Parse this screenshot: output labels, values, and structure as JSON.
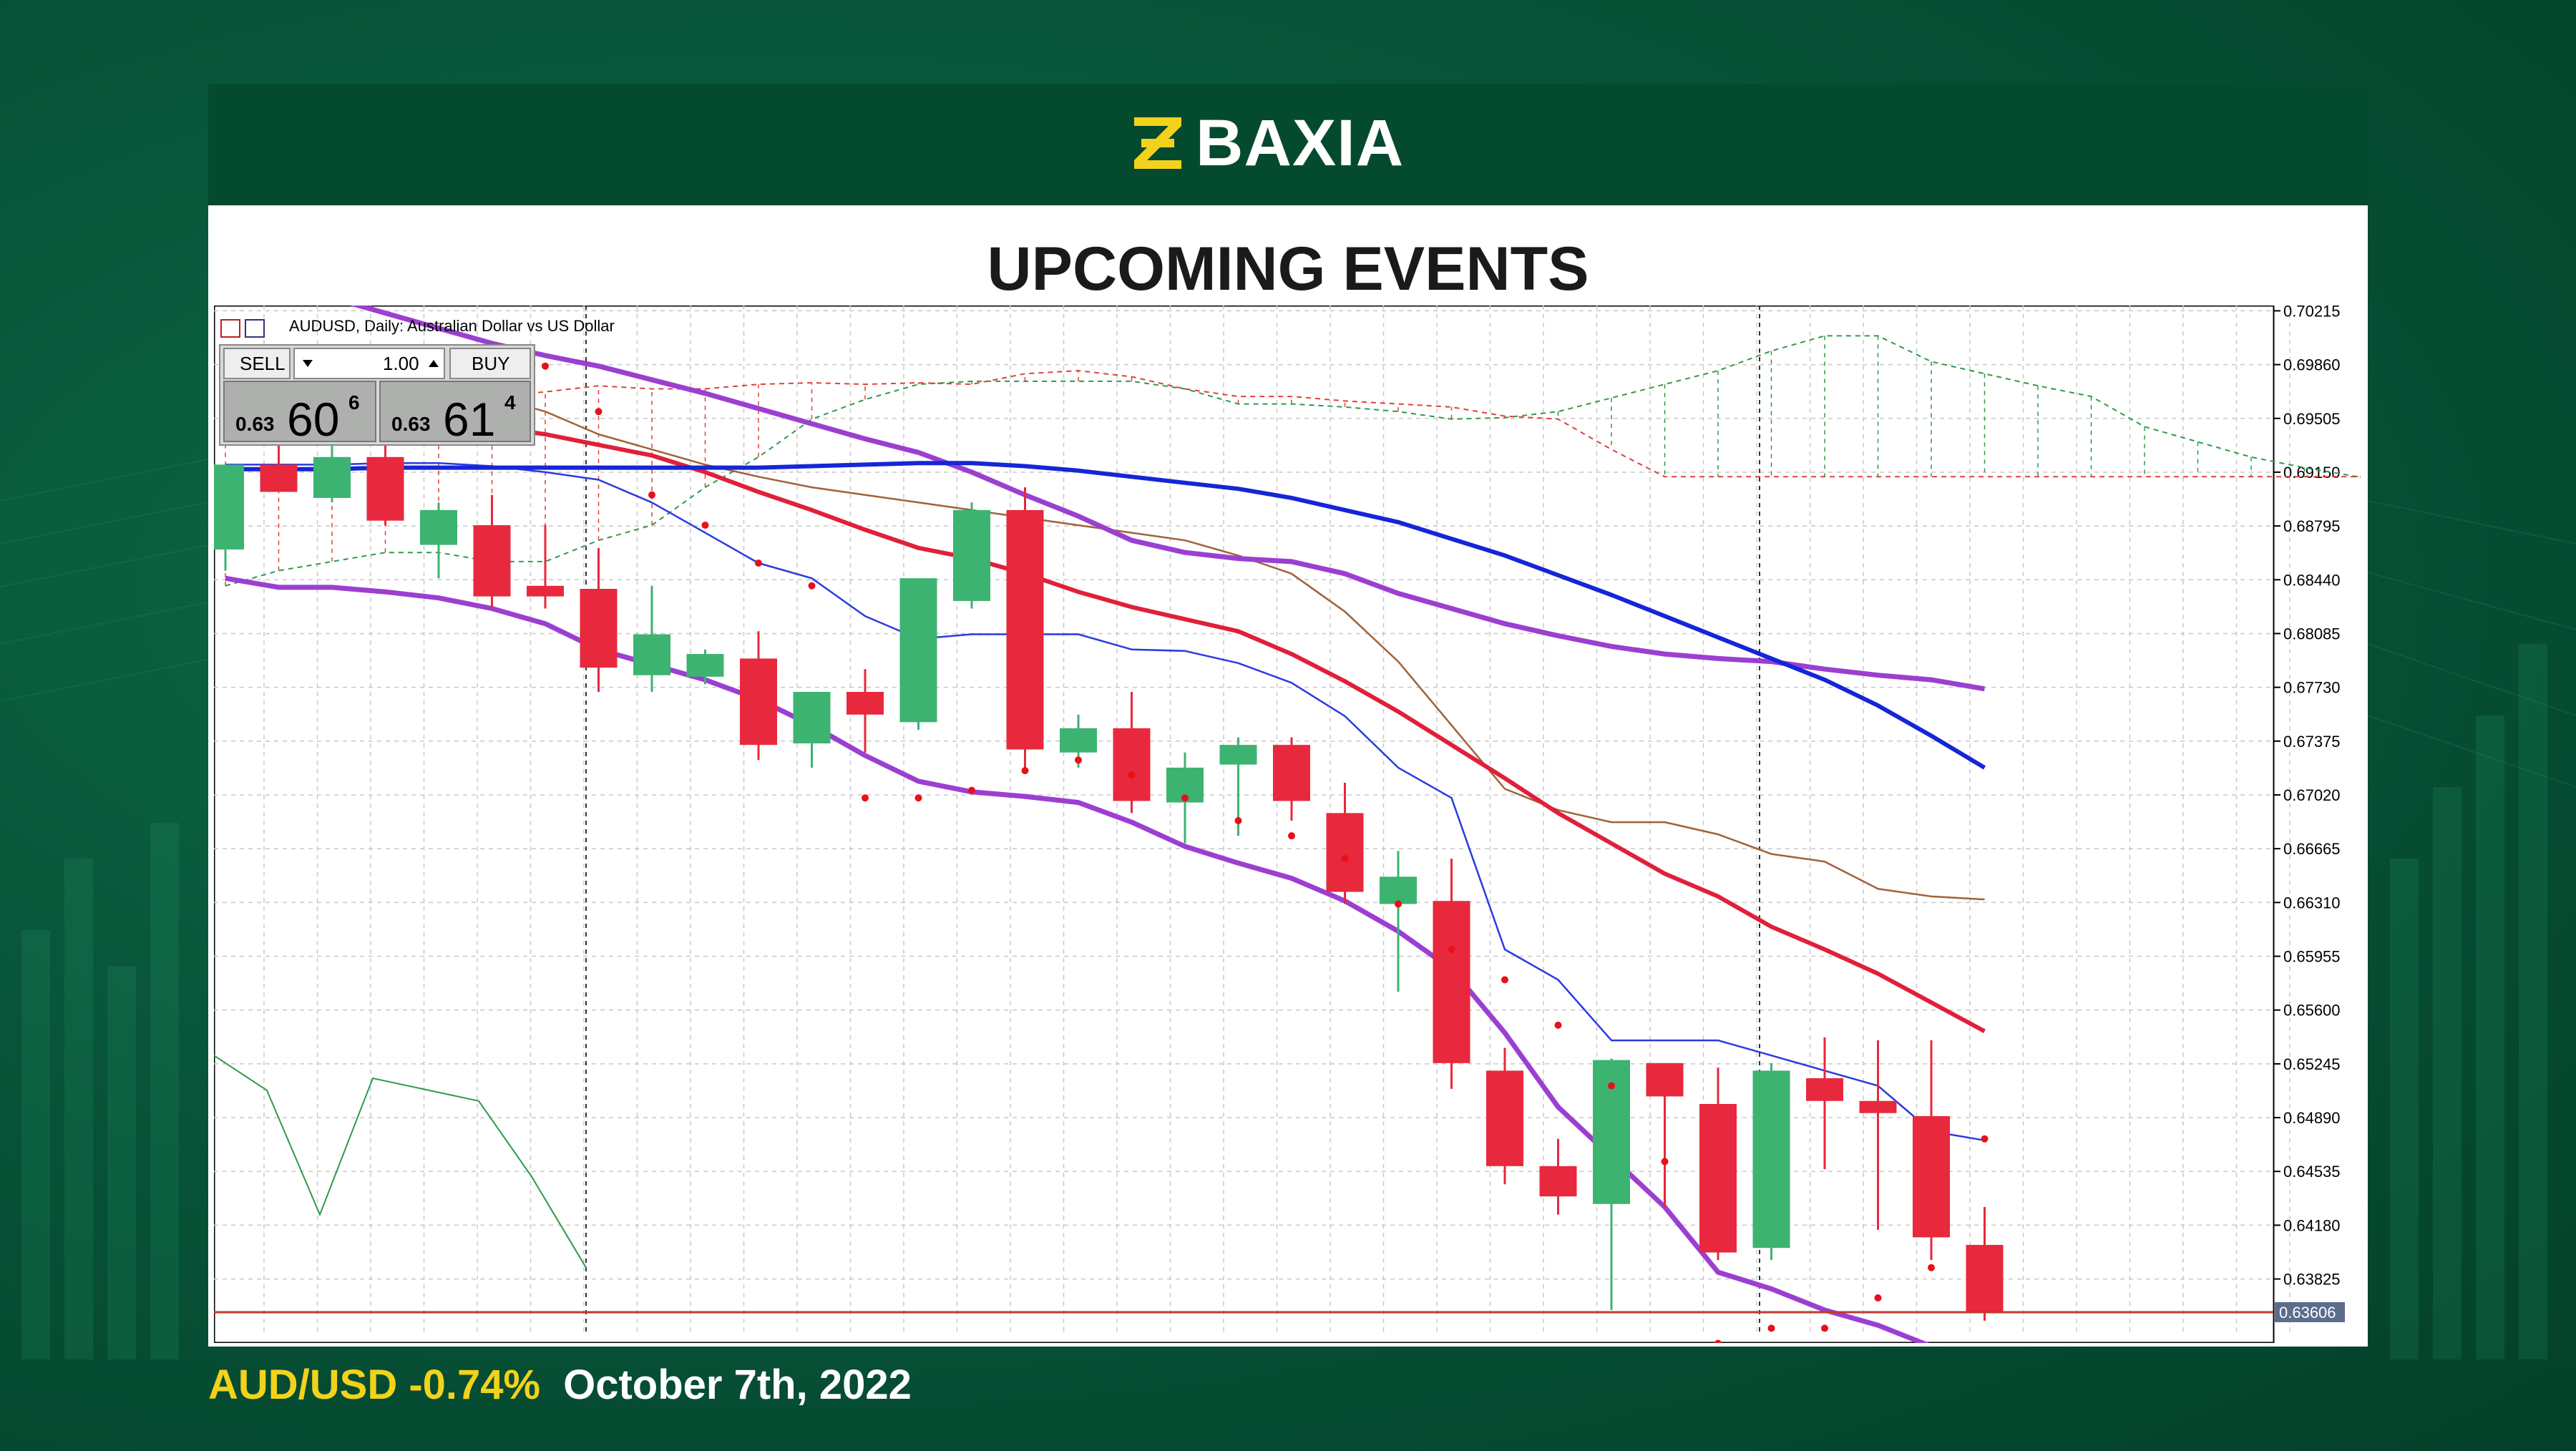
{
  "brand": {
    "name": "BAXIA"
  },
  "title": "UPCOMING EVENTS",
  "footer": {
    "pair_change": "AUD/USD -0.74%",
    "date": "October 7th, 2022"
  },
  "terminal": {
    "symbol_line": "AUDUSD, Daily:  Australian Dollar vs US Dollar",
    "sell_label": "SELL",
    "buy_label": "BUY",
    "lot": "1.00",
    "sell_prefix": "0.63",
    "sell_big": "60",
    "sell_sup": "6",
    "buy_prefix": "0.63",
    "buy_big": "61",
    "buy_sup": "4"
  },
  "chart_data": {
    "type": "candlestick",
    "symbol": "AUDUSD",
    "timeframe": "Daily",
    "y_axis": {
      "ticks": [
        "0.70215",
        "0.69860",
        "0.69505",
        "0.69150",
        "0.68795",
        "0.68440",
        "0.68085",
        "0.67730",
        "0.67375",
        "0.67020",
        "0.66665",
        "0.66310",
        "0.65955",
        "0.65600",
        "0.65245",
        "0.64890",
        "0.64535",
        "0.64180",
        "0.63825"
      ],
      "current_price": "0.63606",
      "range": [
        0.6345,
        0.7025
      ]
    },
    "candles": [
      {
        "o": 0.6864,
        "h": 0.692,
        "l": 0.685,
        "c": 0.692
      },
      {
        "o": 0.692,
        "h": 0.6945,
        "l": 0.6905,
        "c": 0.6902
      },
      {
        "o": 0.6898,
        "h": 0.696,
        "l": 0.6895,
        "c": 0.6925
      },
      {
        "o": 0.6925,
        "h": 0.695,
        "l": 0.688,
        "c": 0.6883
      },
      {
        "o": 0.6867,
        "h": 0.6895,
        "l": 0.6845,
        "c": 0.689
      },
      {
        "o": 0.688,
        "h": 0.69,
        "l": 0.6825,
        "c": 0.6833
      },
      {
        "o": 0.684,
        "h": 0.688,
        "l": 0.6825,
        "c": 0.6833
      },
      {
        "o": 0.6838,
        "h": 0.6865,
        "l": 0.677,
        "c": 0.6786
      },
      {
        "o": 0.6781,
        "h": 0.684,
        "l": 0.677,
        "c": 0.6808
      },
      {
        "o": 0.678,
        "h": 0.6798,
        "l": 0.6775,
        "c": 0.6795
      },
      {
        "o": 0.6792,
        "h": 0.681,
        "l": 0.6725,
        "c": 0.6735
      },
      {
        "o": 0.6736,
        "h": 0.677,
        "l": 0.672,
        "c": 0.677
      },
      {
        "o": 0.677,
        "h": 0.6785,
        "l": 0.673,
        "c": 0.6755
      },
      {
        "o": 0.675,
        "h": 0.684,
        "l": 0.6745,
        "c": 0.6845
      },
      {
        "o": 0.683,
        "h": 0.6895,
        "l": 0.6825,
        "c": 0.689
      },
      {
        "o": 0.689,
        "h": 0.6905,
        "l": 0.672,
        "c": 0.6732
      },
      {
        "o": 0.673,
        "h": 0.6755,
        "l": 0.672,
        "c": 0.6746
      },
      {
        "o": 0.6746,
        "h": 0.677,
        "l": 0.669,
        "c": 0.6698
      },
      {
        "o": 0.6697,
        "h": 0.673,
        "l": 0.667,
        "c": 0.672
      },
      {
        "o": 0.6722,
        "h": 0.674,
        "l": 0.6675,
        "c": 0.6735
      },
      {
        "o": 0.6735,
        "h": 0.674,
        "l": 0.6685,
        "c": 0.6698
      },
      {
        "o": 0.669,
        "h": 0.671,
        "l": 0.663,
        "c": 0.6638
      },
      {
        "o": 0.663,
        "h": 0.6665,
        "l": 0.6572,
        "c": 0.6648
      },
      {
        "o": 0.6632,
        "h": 0.666,
        "l": 0.6508,
        "c": 0.6525
      },
      {
        "o": 0.652,
        "h": 0.6535,
        "l": 0.6445,
        "c": 0.6457
      },
      {
        "o": 0.6457,
        "h": 0.6475,
        "l": 0.6425,
        "c": 0.6437
      },
      {
        "o": 0.6432,
        "h": 0.6528,
        "l": 0.6362,
        "c": 0.6527
      },
      {
        "o": 0.6525,
        "h": 0.6525,
        "l": 0.643,
        "c": 0.6503
      },
      {
        "o": 0.6498,
        "h": 0.6522,
        "l": 0.6395,
        "c": 0.64
      },
      {
        "o": 0.6403,
        "h": 0.6525,
        "l": 0.6395,
        "c": 0.652
      },
      {
        "o": 0.6515,
        "h": 0.6542,
        "l": 0.6455,
        "c": 0.65
      },
      {
        "o": 0.65,
        "h": 0.654,
        "l": 0.6415,
        "c": 0.6492
      },
      {
        "o": 0.649,
        "h": 0.654,
        "l": 0.6395,
        "c": 0.641
      },
      {
        "o": 0.6405,
        "h": 0.643,
        "l": 0.6355,
        "c": 0.6361
      }
    ],
    "indicators": {
      "ma_slow_blue": [
        0.6917,
        0.6917,
        0.6917,
        0.6918,
        0.6918,
        0.6918,
        0.6918,
        0.6918,
        0.6918,
        0.6918,
        0.6918,
        0.6919,
        0.692,
        0.6921,
        0.6921,
        0.6919,
        0.6916,
        0.6912,
        0.6908,
        0.6904,
        0.6898,
        0.689,
        0.6882,
        0.6871,
        0.686,
        0.6847,
        0.6834,
        0.682,
        0.6806,
        0.6792,
        0.6778,
        0.6761,
        0.6741,
        0.672
      ],
      "ma_fast_red": [
        0.696,
        0.6958,
        0.6956,
        0.6953,
        0.695,
        0.6945,
        0.694,
        0.6933,
        0.6926,
        0.6915,
        0.6902,
        0.689,
        0.6877,
        0.6865,
        0.6858,
        0.6848,
        0.6836,
        0.6826,
        0.6818,
        0.681,
        0.6795,
        0.6777,
        0.6757,
        0.6735,
        0.6713,
        0.669,
        0.667,
        0.665,
        0.6635,
        0.6615,
        0.66,
        0.6584,
        0.6565,
        0.6546
      ],
      "bb_upper_purple": [
        0.705,
        0.704,
        0.703,
        0.702,
        0.701,
        0.7,
        0.6992,
        0.6985,
        0.6976,
        0.6967,
        0.6957,
        0.6947,
        0.6937,
        0.6928,
        0.6915,
        0.69,
        0.6886,
        0.687,
        0.6862,
        0.6858,
        0.6856,
        0.6848,
        0.6835,
        0.6825,
        0.6815,
        0.6807,
        0.68,
        0.6795,
        0.6792,
        0.679,
        0.6785,
        0.6781,
        0.6778,
        0.6772
      ],
      "bb_lower_purple": [
        0.6845,
        0.6839,
        0.6839,
        0.6836,
        0.6832,
        0.6825,
        0.6815,
        0.6798,
        0.6788,
        0.6778,
        0.6765,
        0.6748,
        0.6728,
        0.6711,
        0.6704,
        0.6701,
        0.6697,
        0.6684,
        0.6668,
        0.6657,
        0.6647,
        0.6632,
        0.6612,
        0.6587,
        0.6545,
        0.6496,
        0.6463,
        0.643,
        0.6387,
        0.6376,
        0.6362,
        0.6352,
        0.6338,
        0.632
      ],
      "envelope_blue_thin": [
        0.692,
        0.692,
        0.692,
        0.6921,
        0.6921,
        0.6919,
        0.6915,
        0.691,
        0.6895,
        0.6875,
        0.6855,
        0.6845,
        0.682,
        0.6805,
        0.6808,
        0.6808,
        0.6808,
        0.6798,
        0.6797,
        0.6789,
        0.6776,
        0.6754,
        0.672,
        0.67,
        0.66,
        0.658,
        0.654,
        0.654,
        0.654,
        0.653,
        0.652,
        0.651,
        0.648,
        0.6474
      ],
      "tenkan_brown": [
        0.6966,
        0.6966,
        0.6966,
        0.6965,
        0.6965,
        0.6965,
        0.6955,
        0.694,
        0.693,
        0.692,
        0.6912,
        0.6905,
        0.69,
        0.6895,
        0.689,
        0.6885,
        0.688,
        0.6875,
        0.687,
        0.686,
        0.6848,
        0.6823,
        0.679,
        0.6748,
        0.6706,
        0.6692,
        0.6684,
        0.6684,
        0.6676,
        0.6663,
        0.6658,
        0.664,
        0.6635,
        0.6633
      ],
      "psar_dots": [
        null,
        null,
        null,
        0.6974,
        null,
        null,
        0.6985,
        0.6955,
        0.69,
        0.688,
        0.6855,
        0.684,
        0.67,
        0.67,
        0.6705,
        0.6718,
        0.6725,
        0.6715,
        0.67,
        0.6685,
        0.6675,
        0.666,
        0.663,
        0.66,
        0.658,
        0.655,
        0.651,
        0.646,
        0.634,
        0.635,
        0.635,
        0.637,
        0.639,
        0.6475
      ],
      "cloud_span_a_green": [
        0.684,
        0.685,
        0.6856,
        0.6862,
        0.6862,
        0.6856,
        0.6856,
        0.687,
        0.688,
        0.6905,
        0.6925,
        0.695,
        0.6963,
        0.6973,
        0.6975,
        0.6975,
        0.6975,
        0.6975,
        0.697,
        0.696,
        0.696,
        0.6958,
        0.6955,
        0.695,
        0.6951,
        0.6955,
        0.6964,
        0.6973,
        0.6982,
        0.6995,
        0.7005,
        0.7005,
        0.6988,
        0.698,
        0.6972,
        0.6965,
        0.6945,
        0.6935,
        0.6925,
        0.6918,
        0.6912,
        0.69,
        0.689,
        0.6885
      ],
      "cloud_span_b_red": [
        0.694,
        0.6945,
        0.6955,
        0.6958,
        0.696,
        0.6965,
        0.6968,
        0.6972,
        0.697,
        0.697,
        0.6973,
        0.6974,
        0.6973,
        0.6974,
        0.6973,
        0.698,
        0.6982,
        0.6978,
        0.697,
        0.6965,
        0.6965,
        0.6962,
        0.696,
        0.6958,
        0.6952,
        0.695,
        0.693,
        0.6912,
        0.6912,
        0.6912,
        0.6912,
        0.6912,
        0.6912,
        0.6912,
        0.6912,
        0.6912,
        0.6912,
        0.6912,
        0.6912,
        0.6912,
        0.6912,
        0.6912,
        0.6912,
        0.6912
      ]
    },
    "oscillator_green": [
      0.653,
      0.6507,
      0.6425,
      0.6515,
      0.651,
      0.65,
      0.645,
      0.638
    ]
  }
}
